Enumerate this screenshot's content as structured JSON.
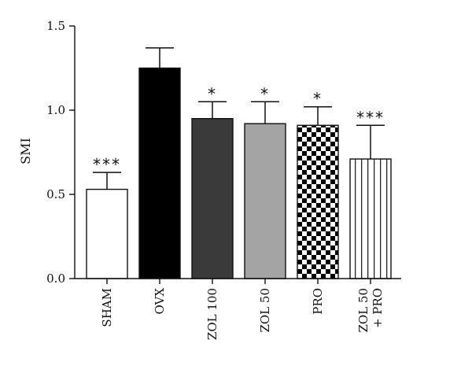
{
  "chart_data": {
    "type": "bar",
    "ylabel": "SMI",
    "ylim": [
      0,
      1.5
    ],
    "yticks": [
      "0.0",
      "0.5",
      "1.0",
      "1.5"
    ],
    "categories": [
      [
        "SHAM"
      ],
      [
        "OVX"
      ],
      [
        "ZOL 100"
      ],
      [
        "ZOL 50"
      ],
      [
        "PRO"
      ],
      [
        "ZOL 50",
        "+ PRO"
      ]
    ],
    "values": [
      0.53,
      1.25,
      0.95,
      0.92,
      0.91,
      0.71
    ],
    "errors": [
      0.1,
      0.12,
      0.1,
      0.13,
      0.11,
      0.2
    ],
    "significance": [
      "***",
      "",
      "*",
      "*",
      "*",
      "***"
    ],
    "fills": [
      "white",
      "black",
      "dark-gray",
      "light-gray",
      "checkerboard",
      "vertical-stripes"
    ],
    "colors": {
      "dark_gray": "#3a3a3a",
      "light_gray": "#a4a4a4",
      "black": "#000000",
      "white": "#ffffff"
    }
  }
}
